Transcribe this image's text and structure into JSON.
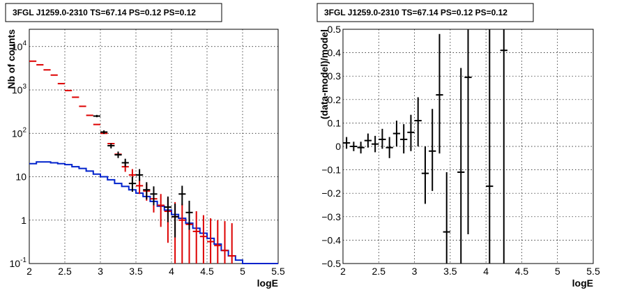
{
  "chart_data": [
    {
      "type": "scatter",
      "title": "3FGL J1259.0-2310 TS=67.14 PS=0.12 PS=0.12",
      "xlabel": "logE",
      "ylabel": "Nb of counts",
      "xlim": [
        2,
        5.5
      ],
      "ylim": [
        0.1,
        25000
      ],
      "yscale": "log",
      "grid": true,
      "xticks": [
        "2",
        "2.5",
        "3",
        "3.5",
        "4",
        "4.5",
        "5",
        "5.5"
      ],
      "yticks": [
        {
          "v": 0.1,
          "base": "10",
          "exp": "-1"
        },
        {
          "v": 1,
          "base": "1",
          "exp": ""
        },
        {
          "v": 10,
          "base": "10",
          "exp": ""
        },
        {
          "v": 100,
          "base": "10",
          "exp": "2"
        },
        {
          "v": 1000,
          "base": "10",
          "exp": "3"
        },
        {
          "v": 10000,
          "base": "10",
          "exp": "4"
        }
      ],
      "colors": {
        "data": "#000000",
        "model": "#dd0000",
        "background": "#0022cc"
      },
      "series": [
        {
          "role": "model",
          "points": [
            {
              "x": 2.05,
              "y": 4600
            },
            {
              "x": 2.15,
              "y": 3800
            },
            {
              "x": 2.25,
              "y": 2900
            },
            {
              "x": 2.35,
              "y": 2200
            },
            {
              "x": 2.45,
              "y": 1400
            },
            {
              "x": 2.55,
              "y": 970
            },
            {
              "x": 2.65,
              "y": 680
            },
            {
              "x": 2.75,
              "y": 420
            },
            {
              "x": 2.85,
              "y": 260
            },
            {
              "x": 2.95,
              "y": 160
            },
            {
              "x": 3.05,
              "y": 100
            },
            {
              "x": 3.15,
              "y": 58
            },
            {
              "x": 3.25,
              "y": 33
            },
            {
              "x": 3.35,
              "y": 17,
              "lo": 13,
              "hi": 22
            },
            {
              "x": 3.45,
              "y": 11,
              "lo": 7,
              "hi": 15
            },
            {
              "x": 3.55,
              "y": 6.2,
              "lo": 4,
              "hi": 9
            },
            {
              "x": 3.65,
              "y": 4.7,
              "lo": 2.8,
              "hi": 7
            },
            {
              "x": 3.75,
              "y": 3.1,
              "lo": 1.5,
              "hi": 5
            },
            {
              "x": 3.85,
              "y": 2.2,
              "lo": 0.7,
              "hi": 4
            },
            {
              "x": 3.95,
              "y": 1.6,
              "lo": 0.3,
              "hi": 3.2
            },
            {
              "x": 4.05,
              "y": 1.2,
              "lo": 0.1,
              "hi": 2.6
            },
            {
              "x": 4.15,
              "y": 1.0,
              "lo": 0.1,
              "hi": 2.4
            },
            {
              "x": 4.25,
              "y": 0.8,
              "lo": 0.1,
              "hi": 2.0
            },
            {
              "x": 4.35,
              "y": 0.55,
              "lo": 0.1,
              "hi": 1.6
            },
            {
              "x": 4.45,
              "y": 0.42,
              "lo": 0.1,
              "hi": 1.3
            },
            {
              "x": 4.55,
              "y": 0.32,
              "lo": 0.1,
              "hi": 1.1
            },
            {
              "x": 4.65,
              "y": 0.26,
              "lo": 0.1,
              "hi": 1.0
            },
            {
              "x": 4.75,
              "y": 0.2,
              "lo": 0.1,
              "hi": 0.95
            },
            {
              "x": 4.85,
              "y": 0.15,
              "lo": 0.1,
              "hi": 0.85
            }
          ]
        },
        {
          "role": "data",
          "points": [
            {
              "x": 2.95,
              "y": 250,
              "lo": 235,
              "hi": 266
            },
            {
              "x": 3.05,
              "y": 107,
              "lo": 97,
              "hi": 117
            },
            {
              "x": 3.15,
              "y": 52,
              "lo": 45,
              "hi": 59
            },
            {
              "x": 3.25,
              "y": 32,
              "lo": 27,
              "hi": 38
            },
            {
              "x": 3.35,
              "y": 21,
              "lo": 17,
              "hi": 26
            },
            {
              "x": 3.45,
              "y": 7,
              "lo": 4.5,
              "hi": 10
            },
            {
              "x": 3.55,
              "y": 11,
              "lo": 8,
              "hi": 15
            },
            {
              "x": 3.65,
              "y": 5,
              "lo": 3,
              "hi": 7.5
            },
            {
              "x": 3.75,
              "y": 4,
              "lo": 2.2,
              "hi": 6
            },
            {
              "x": 3.95,
              "y": 2,
              "lo": 0.9,
              "hi": 3.5
            },
            {
              "x": 4.05,
              "y": 1.2,
              "lo": 0.4,
              "hi": 2.4
            },
            {
              "x": 4.15,
              "y": 4,
              "lo": 2.2,
              "hi": 6.2
            },
            {
              "x": 4.25,
              "y": 1.5,
              "lo": 0.6,
              "hi": 2.8
            }
          ]
        },
        {
          "role": "background",
          "step_edges": [
            2.0,
            2.1,
            2.2,
            2.3,
            2.4,
            2.5,
            2.6,
            2.7,
            2.8,
            2.9,
            3.0,
            3.1,
            3.2,
            3.3,
            3.4,
            3.5,
            3.6,
            3.7,
            3.8,
            3.9,
            4.0,
            4.1,
            4.2,
            4.3,
            4.4,
            4.5,
            4.6,
            4.7,
            4.8,
            4.9,
            5.0,
            5.5
          ],
          "values": [
            20,
            22,
            22,
            21,
            20,
            19,
            17,
            15.5,
            13.5,
            11.5,
            10,
            8.5,
            7,
            6,
            5,
            4.2,
            3.5,
            2.7,
            2.1,
            1.7,
            1.35,
            1.1,
            0.85,
            0.65,
            0.5,
            0.38,
            0.28,
            0.2,
            0.15,
            0.12,
            0.1
          ]
        }
      ]
    },
    {
      "type": "scatter",
      "title": "3FGL J1259.0-2310 TS=67.14 PS=0.12 PS=0.12",
      "xlabel": "logE",
      "ylabel": "(data-model)/model",
      "xlim": [
        2,
        5.5
      ],
      "ylim": [
        -0.5,
        0.5
      ],
      "grid": true,
      "xticks": [
        "2",
        "2.5",
        "3",
        "3.5",
        "4",
        "4.5",
        "5",
        "5.5"
      ],
      "yticks": [
        "−0.5",
        "−0.4",
        "−0.3",
        "−0.2",
        "−0.1",
        "0",
        "0.1",
        "0.2",
        "0.3",
        "0.4",
        "0.5"
      ],
      "series": [
        {
          "role": "residual",
          "points": [
            {
              "x": 2.05,
              "y": 0.015,
              "lo": -0.01,
              "hi": 0.04
            },
            {
              "x": 2.15,
              "y": 0.0,
              "lo": -0.02,
              "hi": 0.02
            },
            {
              "x": 2.25,
              "y": -0.005,
              "lo": -0.03,
              "hi": 0.02
            },
            {
              "x": 2.35,
              "y": 0.025,
              "lo": -0.005,
              "hi": 0.055
            },
            {
              "x": 2.45,
              "y": 0.01,
              "lo": -0.025,
              "hi": 0.045
            },
            {
              "x": 2.55,
              "y": 0.03,
              "lo": -0.01,
              "hi": 0.075
            },
            {
              "x": 2.65,
              "y": -0.005,
              "lo": -0.05,
              "hi": 0.04
            },
            {
              "x": 2.75,
              "y": 0.055,
              "lo": 0.0,
              "hi": 0.11
            },
            {
              "x": 2.85,
              "y": 0.03,
              "lo": -0.03,
              "hi": 0.095
            },
            {
              "x": 2.95,
              "y": 0.06,
              "lo": -0.02,
              "hi": 0.135
            },
            {
              "x": 3.05,
              "y": 0.11,
              "lo": 0.0,
              "hi": 0.21
            },
            {
              "x": 3.15,
              "y": -0.115,
              "lo": -0.245,
              "hi": 0.0
            },
            {
              "x": 3.25,
              "y": -0.02,
              "lo": -0.19,
              "hi": 0.16
            },
            {
              "x": 3.35,
              "y": 0.22,
              "lo": -0.03,
              "hi": 0.48
            },
            {
              "x": 3.45,
              "y": -0.365,
              "lo": -0.5,
              "hi": -0.11
            },
            {
              "x": 3.65,
              "y": -0.11,
              "lo": -0.5,
              "hi": 0.335
            },
            {
              "x": 3.75,
              "y": 0.295,
              "lo": -0.375,
              "hi": 0.5
            },
            {
              "x": 4.05,
              "y": -0.17,
              "lo": -0.5,
              "hi": 0.5
            },
            {
              "x": 4.25,
              "y": 0.41,
              "lo": -0.5,
              "hi": 0.5
            }
          ]
        }
      ]
    }
  ]
}
